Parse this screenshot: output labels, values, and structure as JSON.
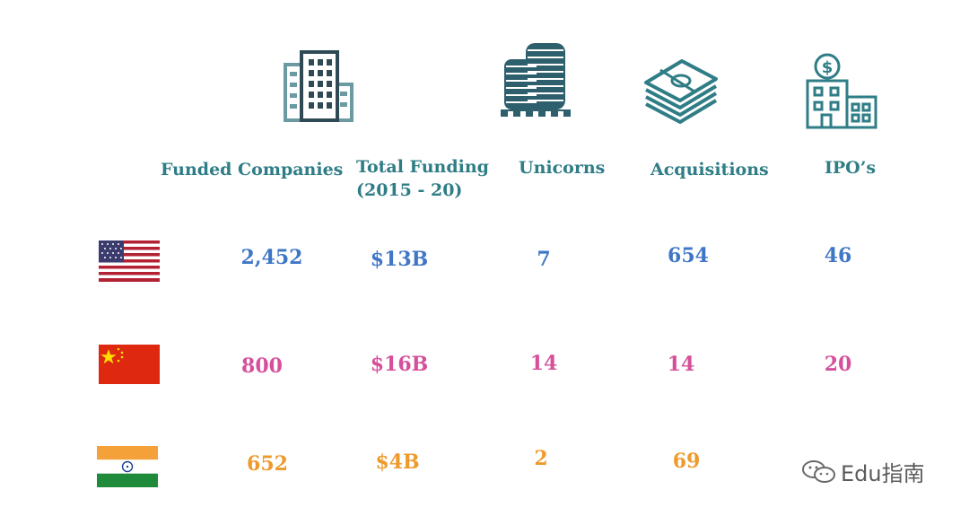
{
  "headers": {
    "funded_companies": "Funded Companies",
    "total_funding_line1": "Total Funding",
    "total_funding_line2": "(2015 - 20)",
    "unicorns": "Unicorns",
    "acquisitions": "Acquisitions",
    "ipos": "IPO’s"
  },
  "icons": [
    "office-building-icon",
    "twin-towers-icon",
    "money-stack-icon",
    "bank-dollar-icon"
  ],
  "rows": [
    {
      "country": "United States",
      "flag": "us-flag-icon",
      "color": "#3f76c6",
      "funded_companies": "2,452",
      "total_funding": "$13B",
      "unicorns": "7",
      "acquisitions": "654",
      "ipos": "46"
    },
    {
      "country": "China",
      "flag": "china-flag-icon",
      "color": "#d64f9a",
      "funded_companies": "800",
      "total_funding": "$16B",
      "unicorns": "14",
      "acquisitions": "14",
      "ipos": "20"
    },
    {
      "country": "India",
      "flag": "india-flag-icon",
      "color": "#ee9a2d",
      "funded_companies": "652",
      "total_funding": "$4B",
      "unicorns": "2",
      "acquisitions": "69",
      "ipos": ""
    }
  ],
  "watermark": {
    "text": "Edu指南"
  }
}
